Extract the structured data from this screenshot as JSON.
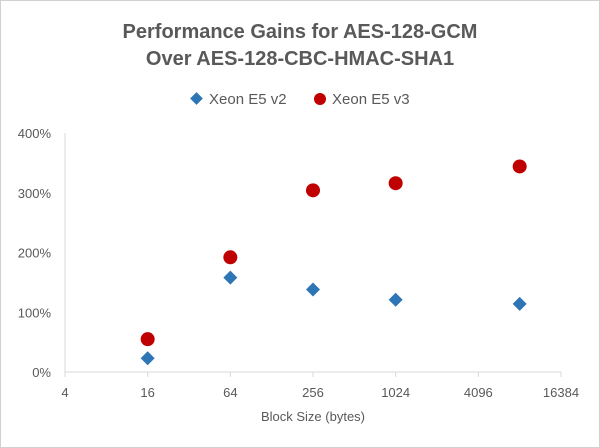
{
  "chart_data": {
    "type": "scatter",
    "title_lines": [
      "Performance Gains for AES-128-GCM",
      "Over AES-128-CBC-HMAC-SHA1"
    ],
    "xlabel": "Block Size (bytes)",
    "ylabel": "",
    "x_scale": "log4",
    "xlim": [
      4,
      16384
    ],
    "ylim": [
      0,
      400
    ],
    "x_ticks": [
      4,
      16,
      64,
      256,
      1024,
      4096,
      16384
    ],
    "x_tick_labels": [
      "4",
      "16",
      "64",
      "256",
      "1024",
      "4096",
      "16384"
    ],
    "y_ticks": [
      0,
      100,
      200,
      300,
      400
    ],
    "y_tick_labels": [
      "0%",
      "100%",
      "200%",
      "300%",
      "400%"
    ],
    "grid": false,
    "legend_position": "top",
    "series": [
      {
        "name": "Xeon E5 v2",
        "marker": "diamond",
        "color": "#2E75B6",
        "x": [
          16,
          64,
          256,
          1024,
          8192
        ],
        "y": [
          23,
          158,
          138,
          121,
          114
        ]
      },
      {
        "name": "Xeon E5 v3",
        "marker": "circle",
        "color": "#C00000",
        "x": [
          16,
          64,
          256,
          1024,
          8192
        ],
        "y": [
          55,
          192,
          304,
          316,
          344
        ]
      }
    ]
  }
}
